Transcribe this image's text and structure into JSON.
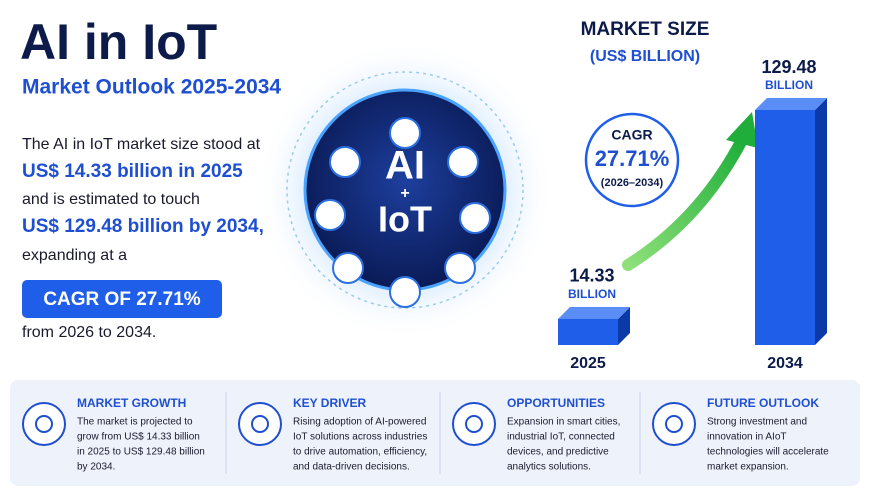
{
  "header": {
    "title": "AI in IoT",
    "subtitle": "Market Outlook 2025-2034"
  },
  "summary": {
    "lines": [
      "The AI in IoT market size stood at",
      "US$ 14.33 billion in 2025",
      "and is estimated to touch",
      "US$ 129.48 billion by 2034,",
      "expanding at a"
    ],
    "badge": "CAGR OF 27.71%",
    "closing": "from 2026 to 2034."
  },
  "emblem": {
    "top": "AI",
    "plus": "+",
    "bottom": "IoT"
  },
  "chart_data": {
    "type": "bar",
    "title": "MARKET SIZE",
    "subtitle": "(US$ BILLION)",
    "categories": [
      "2025",
      "2034"
    ],
    "values": [
      14.33,
      129.48
    ],
    "value_unit": "BILLION",
    "color": "#1f5ee8",
    "annotation": {
      "label": "CAGR",
      "value": "27.71%",
      "period": "(2026–2034)"
    }
  },
  "cards": [
    {
      "title": "MARKET GROWTH",
      "lines": [
        "The market is projected to",
        "grow from US$ 14.33 billion",
        "in 2025 to US$ 129.48 billion",
        "by 2034."
      ]
    },
    {
      "title": "KEY DRIVER",
      "lines": [
        "Rising adoption of AI-powered",
        "IoT solutions across industries",
        "to drive automation, efficiency,",
        "and data-driven decisions."
      ]
    },
    {
      "title": "OPPORTUNITIES",
      "lines": [
        "Expansion in smart cities,",
        "industrial IoT, connected",
        "devices, and predictive",
        "analytics solutions."
      ]
    },
    {
      "title": "FUTURE OUTLOOK",
      "lines": [
        "Strong investment and",
        "innovation in AIoT",
        "technologies will accelerate",
        "market expansion."
      ]
    }
  ]
}
